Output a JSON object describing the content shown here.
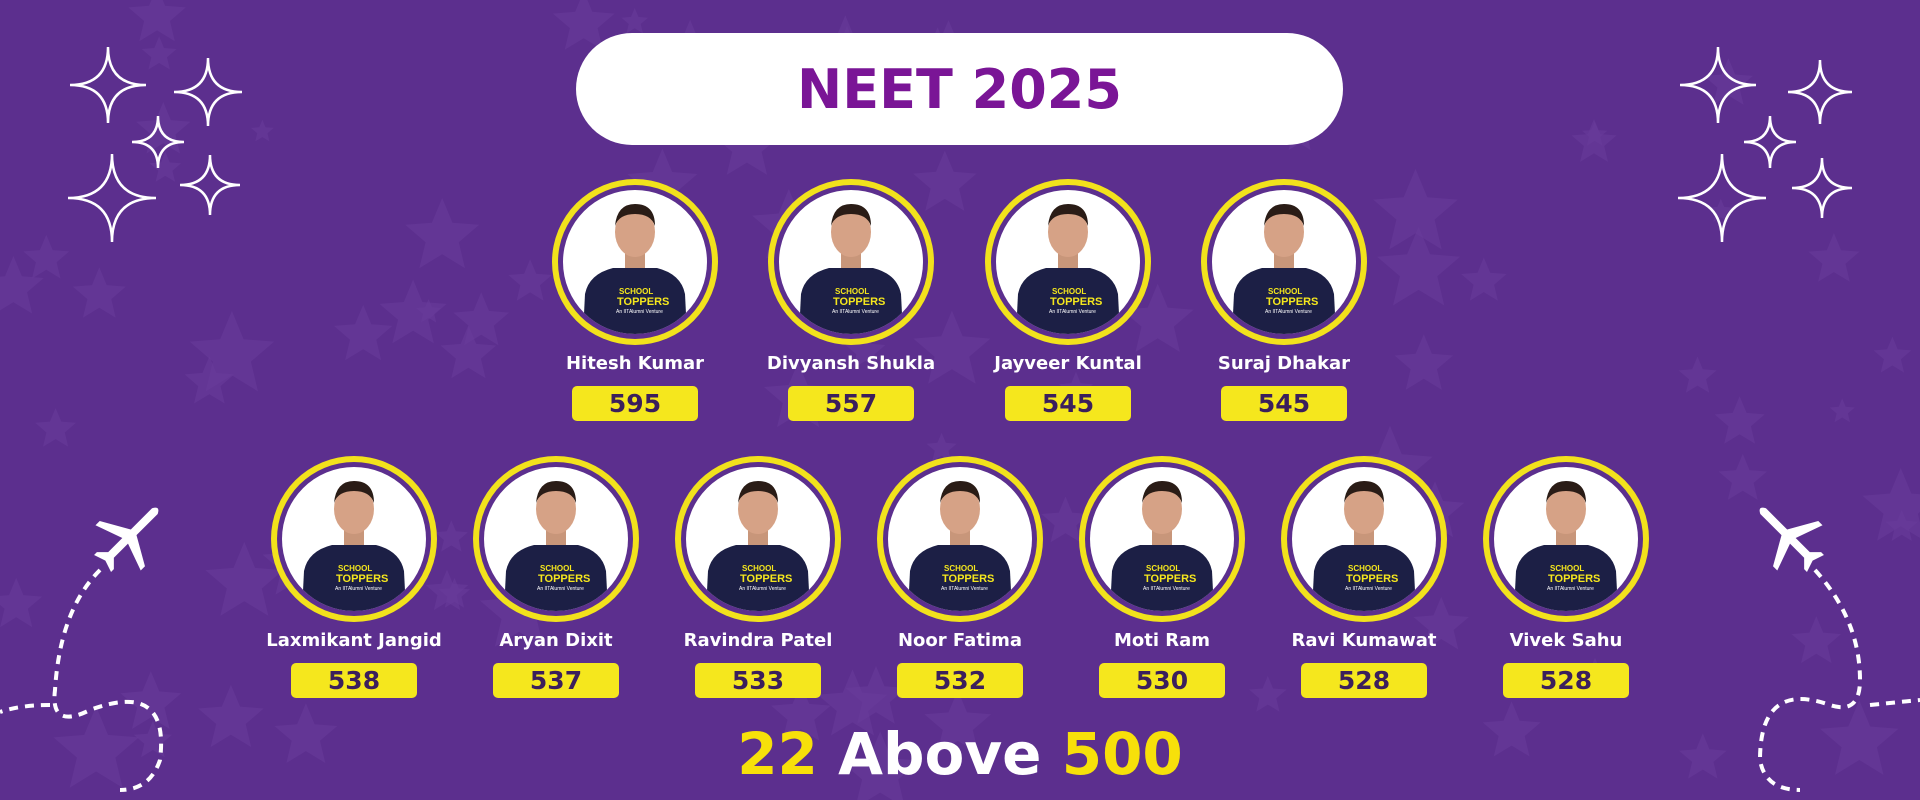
{
  "title": "NEET 2025",
  "shirt_logo": {
    "line1": "SCHOOL",
    "line2": "TOPPERS",
    "line3": "An IITAlumni Venture"
  },
  "top_row": [
    {
      "name": "Hitesh Kumar",
      "score": "595"
    },
    {
      "name": "Divyansh Shukla",
      "score": "557"
    },
    {
      "name": "Jayveer Kuntal",
      "score": "545"
    },
    {
      "name": "Suraj Dhakar",
      "score": "545"
    }
  ],
  "bottom_row": [
    {
      "name": "Laxmikant Jangid",
      "score": "538"
    },
    {
      "name": "Aryan Dixit",
      "score": "537"
    },
    {
      "name": "Ravindra Patel",
      "score": "533"
    },
    {
      "name": "Noor Fatima",
      "score": "532"
    },
    {
      "name": "Moti Ram",
      "score": "530"
    },
    {
      "name": "Ravi Kumawat",
      "score": "528"
    },
    {
      "name": "Vivek Sahu",
      "score": "528"
    }
  ],
  "footer": {
    "count": "22",
    "text": "Above",
    "threshold": "500"
  },
  "colors": {
    "background": "#5c2f8e",
    "accent_yellow": "#f5e71d",
    "title_purple": "#7a1596"
  }
}
